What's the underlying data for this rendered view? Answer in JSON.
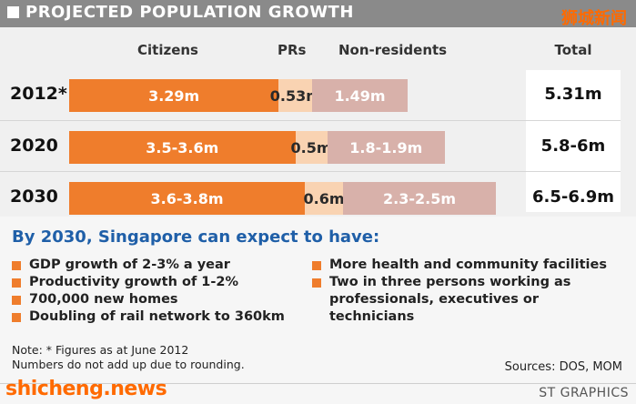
{
  "title": "PROJECTED POPULATION GROWTH",
  "watermark_top": "狮城新闻",
  "watermark_bottom": "shicheng.news",
  "credit": "ST GRAPHICS",
  "colors": {
    "citizens": "#ef7d2c",
    "prs": "#f9d3b2",
    "non_residents": "#d8b1aa",
    "accent": "#1f5fa8"
  },
  "chart_data": {
    "type": "bar",
    "stacked": true,
    "orientation": "horizontal",
    "title": "PROJECTED POPULATION GROWTH",
    "categories": [
      "2012*",
      "2020",
      "2030"
    ],
    "series": [
      {
        "name": "Citizens",
        "values": [
          3.29,
          3.55,
          3.7
        ],
        "labels": [
          "3.29m",
          "3.5-3.6m",
          "3.6-3.8m"
        ]
      },
      {
        "name": "PRs",
        "values": [
          0.53,
          0.5,
          0.6
        ],
        "labels": [
          "0.53m",
          "0.5m",
          "0.6m"
        ]
      },
      {
        "name": "Non-residents",
        "values": [
          1.49,
          1.85,
          2.4
        ],
        "labels": [
          "1.49m",
          "1.8-1.9m",
          "2.3-2.5m"
        ]
      }
    ],
    "totals": [
      "5.31m",
      "5.8-6m",
      "6.5-6.9m"
    ],
    "total_header": "Total",
    "unit": "m",
    "xlim": [
      0,
      7.3
    ]
  },
  "expect_heading": "By 2030, Singapore can expect to have:",
  "bullets_left": [
    "GDP growth of 2-3% a year",
    "Productivity growth of 1-2%",
    "700,000 new homes",
    "Doubling of rail network to 360km"
  ],
  "bullets_right": [
    "More health and community facilities",
    "Two in three persons working as professionals, executives or technicians"
  ],
  "note_lines": [
    "Note: * Figures as at June 2012",
    "Numbers do not add up due to rounding."
  ],
  "sources": "Sources: DOS, MOM"
}
